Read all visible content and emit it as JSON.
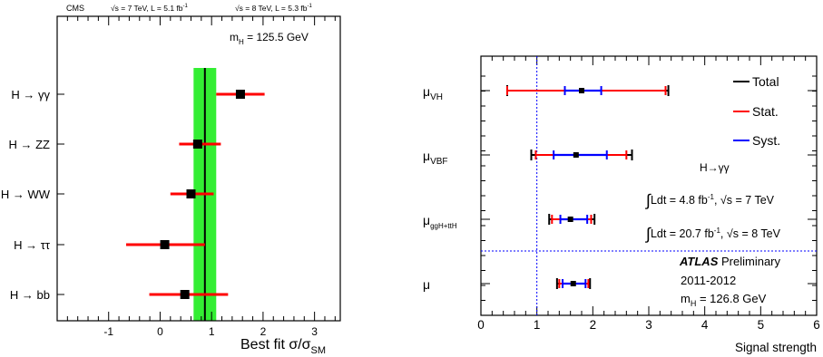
{
  "chart_data": [
    {
      "type": "dot-errorbar",
      "header": {
        "experiment": "CMS",
        "energy_7": "√s = 7 TeV, L = 5.1 fb",
        "energy_7_sup": "-1",
        "energy_8": "√s = 8 TeV, L = 5.3 fb",
        "energy_8_sup": "-1"
      },
      "mass_label": "m",
      "mass_sub": "H",
      "mass_value": " = 125.5 GeV",
      "xlabel": "Best fit σ/σ",
      "xlabel_sub": "SM",
      "xlim": [
        -2,
        3.5
      ],
      "xticks": [
        -1,
        0,
        1,
        2,
        3
      ],
      "xtick_labels": [
        "-1",
        "0",
        "1",
        "2",
        "3"
      ],
      "combined_band": {
        "central": 0.87,
        "low": 0.65,
        "high": 1.09,
        "color": "#33ee33"
      },
      "channels": [
        {
          "label": "H → γγ",
          "value": 1.56,
          "low": 1.09,
          "high": 2.03
        },
        {
          "label": "H → ZZ",
          "value": 0.73,
          "low": 0.37,
          "high": 1.18
        },
        {
          "label": "H → WW",
          "value": 0.6,
          "low": 0.2,
          "high": 1.04
        },
        {
          "label": "H → ττ",
          "value": 0.09,
          "low": -0.66,
          "high": 0.87
        },
        {
          "label": "H → bb",
          "value": 0.48,
          "low": -0.21,
          "high": 1.32
        }
      ],
      "colors": {
        "marker": "#000000",
        "errorbar": "#ff0000"
      }
    },
    {
      "type": "dot-errorbar",
      "xlabel": "Signal strength",
      "xlim": [
        0,
        6
      ],
      "xticks": [
        0,
        1,
        2,
        3,
        4,
        5,
        6
      ],
      "xtick_labels": [
        "0",
        "1",
        "2",
        "3",
        "4",
        "5",
        "6"
      ],
      "sm_reference": 1,
      "legend": [
        "Total",
        "Stat.",
        "Syst."
      ],
      "process": "H→γγ",
      "lumi_7": "Ldt = 4.8 fb",
      "lumi_7_sup": "-1",
      "lumi_7_tail": ", √s = 7 TeV",
      "lumi_8": "Ldt = 20.7 fb",
      "lumi_8_sup": "-1",
      "lumi_8_tail": ", √s = 8 TeV",
      "atlas": "ATLAS",
      "preliminary": " Preliminary",
      "years": "2011-2012",
      "mass_label": "m",
      "mass_sub": "H",
      "mass_value": " = 126.8 GeV",
      "categories": [
        {
          "symbol": "μ",
          "sub": "VH",
          "value": 1.8,
          "total": [
            0.47,
            3.35
          ],
          "stat": [
            0.47,
            3.3
          ],
          "syst": [
            1.5,
            2.15
          ]
        },
        {
          "symbol": "μ",
          "sub": "VBF",
          "value": 1.7,
          "total": [
            0.9,
            2.7
          ],
          "stat": [
            0.98,
            2.6
          ],
          "syst": [
            1.3,
            2.25
          ]
        },
        {
          "symbol": "μ",
          "sub": "ggH+ttH",
          "value": 1.6,
          "total": [
            1.22,
            2.03
          ],
          "stat": [
            1.27,
            1.97
          ],
          "syst": [
            1.42,
            1.9
          ]
        },
        {
          "symbol": "μ",
          "sub": "",
          "value": 1.65,
          "total": [
            1.36,
            1.95
          ],
          "stat": [
            1.4,
            1.92
          ],
          "syst": [
            1.46,
            1.87
          ]
        }
      ],
      "colors": {
        "total": "#000000",
        "stat": "#ff0000",
        "syst": "#0000ff",
        "reference": "#0000ff"
      }
    }
  ]
}
